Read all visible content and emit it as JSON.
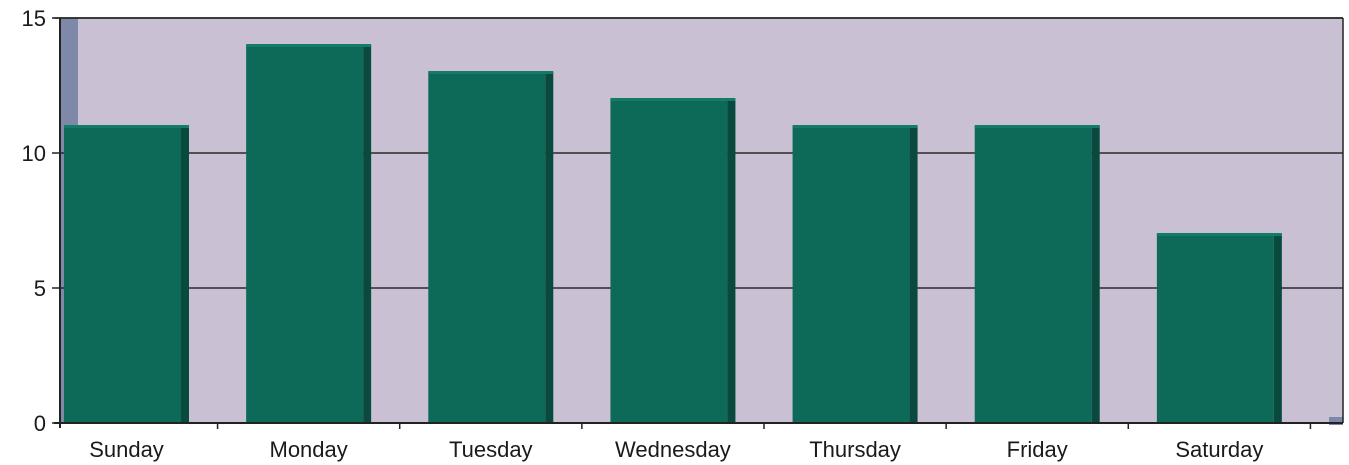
{
  "chart_data": {
    "type": "bar",
    "categories": [
      "Sunday",
      "Monday",
      "Tuesday",
      "Wednesday",
      "Thursday",
      "Friday",
      "Saturday"
    ],
    "values": [
      11,
      14,
      13,
      12,
      11,
      11,
      7
    ],
    "title": "",
    "xlabel": "",
    "ylabel": "",
    "ylim": [
      0,
      15
    ],
    "yticks": [
      0,
      5,
      10,
      15
    ],
    "grid": true,
    "legend": "none"
  },
  "colors": {
    "plot_background": "#c9c1d3",
    "bar_front": "#0e6a58",
    "bar_side": "#0a4a3e",
    "bar_top": "#137b66",
    "gridline": "#2a2a2a",
    "wall": "#7e88a8"
  }
}
